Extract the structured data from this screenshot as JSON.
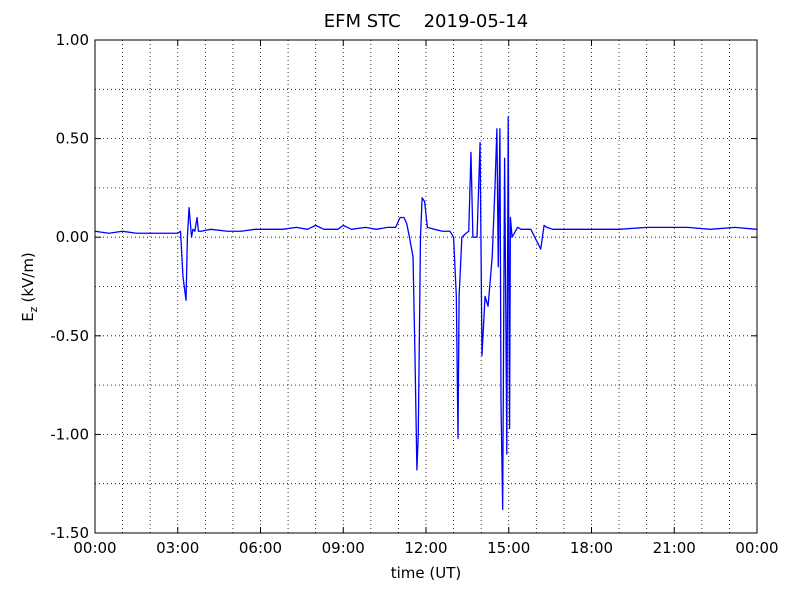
{
  "chart_data": {
    "type": "line",
    "title": "EFM STC    2019-05-14",
    "xlabel": "time (UT)",
    "ylabel": {
      "base": "E",
      "sub": "z",
      "unit": "(kV/m)"
    },
    "x": [
      0,
      0.5,
      1,
      1.5,
      2,
      2.5,
      3,
      3.1,
      3.19,
      3.3,
      3.35,
      3.41,
      3.5,
      3.55,
      3.62,
      3.7,
      3.75,
      3.85,
      4.2,
      4.8,
      5.3,
      5.8,
      6.3,
      6.8,
      7.3,
      7.7,
      8.0,
      8.3,
      8.8,
      9.0,
      9.3,
      9.8,
      10.2,
      10.6,
      10.9,
      11.06,
      11.2,
      11.3,
      11.4,
      11.53,
      11.6,
      11.67,
      11.72,
      11.8,
      11.86,
      11.95,
      12.05,
      12.3,
      12.6,
      12.87,
      13.0,
      13.1,
      13.16,
      13.2,
      13.3,
      13.45,
      13.55,
      13.63,
      13.7,
      13.85,
      13.96,
      14.03,
      14.14,
      14.25,
      14.4,
      14.5,
      14.57,
      14.62,
      14.68,
      14.72,
      14.78,
      14.85,
      14.9,
      14.93,
      14.98,
      15.03,
      15.06,
      15.12,
      15.2,
      15.32,
      15.45,
      15.8,
      16.16,
      16.28,
      16.38,
      16.6,
      17.2,
      18.0,
      19.0,
      20.0,
      20.8,
      21.5,
      22.3,
      23.2,
      24
    ],
    "series": [
      {
        "name": "Ez",
        "color": "#0000ff",
        "values": [
          0.03,
          0.02,
          0.03,
          0.02,
          0.02,
          0.02,
          0.02,
          0.03,
          -0.2,
          -0.32,
          0.0,
          0.15,
          0.0,
          0.04,
          0.03,
          0.1,
          0.03,
          0.03,
          0.04,
          0.03,
          0.03,
          0.04,
          0.04,
          0.04,
          0.05,
          0.04,
          0.06,
          0.04,
          0.04,
          0.06,
          0.04,
          0.05,
          0.04,
          0.05,
          0.05,
          0.1,
          0.1,
          0.07,
          0.0,
          -0.1,
          -0.6,
          -1.18,
          -1.0,
          0.0,
          0.2,
          0.18,
          0.05,
          0.04,
          0.03,
          0.03,
          0.0,
          -0.3,
          -1.02,
          -0.3,
          0.0,
          0.02,
          0.03,
          0.43,
          0.0,
          0.0,
          0.48,
          -0.6,
          -0.3,
          -0.35,
          -0.1,
          0.25,
          0.55,
          -0.15,
          0.55,
          -0.85,
          -1.38,
          0.4,
          -0.5,
          -1.1,
          0.61,
          -0.97,
          0.1,
          0.0,
          0.02,
          0.05,
          0.04,
          0.04,
          -0.06,
          0.06,
          0.05,
          0.04,
          0.04,
          0.04,
          0.04,
          0.05,
          0.05,
          0.05,
          0.04,
          0.05,
          0.04
        ]
      }
    ],
    "xlim": [
      0,
      24
    ],
    "xticks": [
      {
        "value": 0,
        "label": "00:00"
      },
      {
        "value": 3,
        "label": "03:00"
      },
      {
        "value": 6,
        "label": "06:00"
      },
      {
        "value": 9,
        "label": "09:00"
      },
      {
        "value": 12,
        "label": "12:00"
      },
      {
        "value": 15,
        "label": "15:00"
      },
      {
        "value": 18,
        "label": "18:00"
      },
      {
        "value": 21,
        "label": "21:00"
      },
      {
        "value": 24,
        "label": "00:00"
      }
    ],
    "ylim": [
      -1.5,
      1
    ],
    "yticks": [
      {
        "value": -1.5,
        "label": "-1.50"
      },
      {
        "value": -1,
        "label": "-1.00"
      },
      {
        "value": -0.5,
        "label": "-0.50"
      },
      {
        "value": 0,
        "label": "0.00"
      },
      {
        "value": 0.5,
        "label": "0.50"
      },
      {
        "value": 1,
        "label": "1.00"
      }
    ],
    "x_gridlines": [
      1,
      2,
      3,
      4,
      5,
      6,
      7,
      8,
      9,
      10,
      11,
      12,
      13,
      14,
      15,
      16,
      17,
      18,
      19,
      20,
      21,
      22,
      23
    ],
    "y_gridlines": [
      -1.25,
      -1,
      -0.75,
      -0.5,
      -0.25,
      0,
      0.25,
      0.5,
      0.75
    ],
    "grid": true
  }
}
